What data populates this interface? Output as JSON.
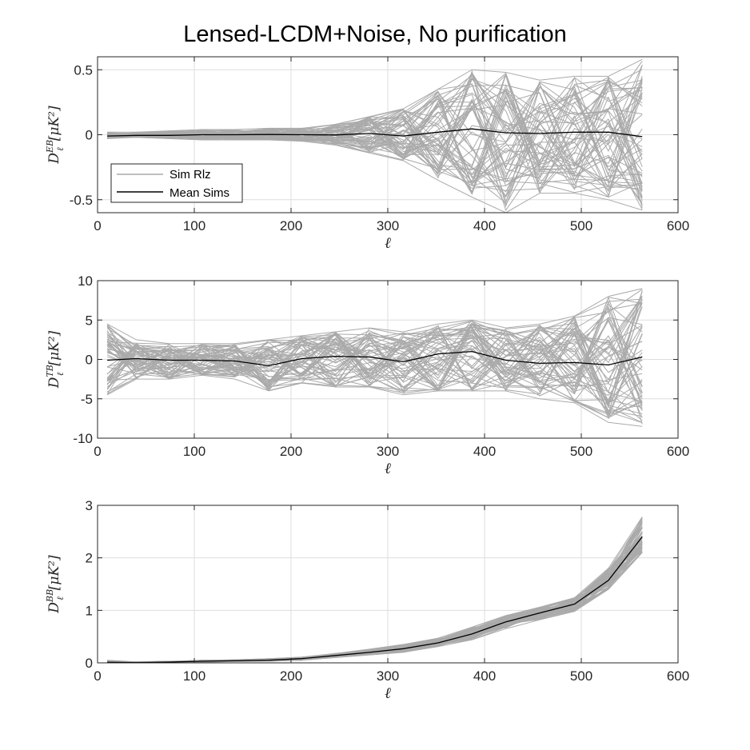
{
  "figure": {
    "title": "Lensed-LCDM+Noise, No purification",
    "legend": {
      "items": [
        {
          "label": "Sim Rlz",
          "color": "#aaaaaa"
        },
        {
          "label": "Mean Sims",
          "color": "#000000"
        }
      ],
      "placement": "bottom-left of first panel"
    },
    "colors": {
      "sims": "#aaaaaa",
      "mean": "#000000",
      "grid": "#dedede",
      "axis": "#262626"
    }
  },
  "chart_data": [
    {
      "type": "line",
      "title": "Lensed-LCDM+Noise, No purification",
      "xlabel": "ℓ",
      "ylabel_main": "D",
      "ylabel_sub": "ℓ",
      "ylabel_sup": "EB",
      "ylabel_unit": "[μK²]",
      "xlim": [
        0,
        600
      ],
      "ylim": [
        -0.6,
        0.6
      ],
      "xticks": [
        0,
        100,
        200,
        300,
        400,
        500,
        600
      ],
      "yticks": [
        -0.5,
        0,
        0.5
      ],
      "ytick_labels": [
        "-0.5",
        "0",
        "0.5"
      ],
      "grid": true,
      "x": [
        10,
        40,
        74,
        108,
        142,
        177,
        211,
        246,
        281,
        316,
        352,
        387,
        422,
        457,
        493,
        528,
        563
      ],
      "series": [
        {
          "name": "Mean Sims",
          "values": [
            -0.01,
            -0.005,
            -0.005,
            0,
            0,
            0.002,
            0,
            -0.002,
            0.01,
            -0.01,
            0.02,
            0.045,
            0.015,
            0.01,
            0.02,
            0.02,
            -0.015
          ]
        }
      ],
      "sim_envelope": {
        "name": "Sim Rlz",
        "upper": [
          0.02,
          0.02,
          0.03,
          0.04,
          0.04,
          0.05,
          0.05,
          0.08,
          0.14,
          0.2,
          0.35,
          0.5,
          0.48,
          0.42,
          0.45,
          0.45,
          0.58
        ],
        "lower": [
          -0.03,
          -0.02,
          -0.03,
          -0.04,
          -0.04,
          -0.04,
          -0.05,
          -0.08,
          -0.14,
          -0.2,
          -0.35,
          -0.48,
          -0.6,
          -0.45,
          -0.45,
          -0.5,
          -0.58
        ]
      }
    },
    {
      "type": "line",
      "xlabel": "ℓ",
      "ylabel_main": "D",
      "ylabel_sub": "ℓ",
      "ylabel_sup": "TB",
      "ylabel_unit": "[μK²]",
      "xlim": [
        0,
        600
      ],
      "ylim": [
        -10,
        10
      ],
      "xticks": [
        0,
        100,
        200,
        300,
        400,
        500,
        600
      ],
      "yticks": [
        -10,
        -5,
        0,
        5,
        10
      ],
      "ytick_labels": [
        "-10",
        "-5",
        "0",
        "5",
        "10"
      ],
      "grid": true,
      "x": [
        10,
        40,
        74,
        108,
        142,
        177,
        211,
        246,
        281,
        316,
        352,
        387,
        422,
        457,
        493,
        528,
        563
      ],
      "series": [
        {
          "name": "Mean Sims",
          "values": [
            -0.1,
            0.1,
            -0.1,
            -0.1,
            -0.2,
            -0.8,
            0.1,
            0.4,
            0.3,
            -0.3,
            0.7,
            1.0,
            -0.1,
            -0.5,
            -0.4,
            -0.7,
            0.3
          ]
        }
      ],
      "sim_envelope": {
        "name": "Sim Rlz",
        "upper": [
          4.5,
          2.5,
          2.0,
          2.0,
          2.0,
          2.5,
          3.0,
          3.5,
          4.0,
          3.5,
          4.5,
          5.0,
          4.0,
          4.5,
          5.5,
          8.0,
          9.0
        ],
        "lower": [
          -4.5,
          -2.5,
          -2.5,
          -2.0,
          -2.5,
          -4.0,
          -3.0,
          -3.5,
          -3.5,
          -4.5,
          -4.0,
          -4.0,
          -4.0,
          -5.0,
          -5.5,
          -8.0,
          -8.5
        ]
      }
    },
    {
      "type": "line",
      "xlabel": "ℓ",
      "ylabel_main": "D",
      "ylabel_sub": "ℓ",
      "ylabel_sup": "BB",
      "ylabel_unit": "[μK²]",
      "xlim": [
        0,
        600
      ],
      "ylim": [
        0,
        3
      ],
      "xticks": [
        0,
        100,
        200,
        300,
        400,
        500,
        600
      ],
      "yticks": [
        0,
        1,
        2,
        3
      ],
      "ytick_labels": [
        "0",
        "1",
        "2",
        "3"
      ],
      "grid": true,
      "x": [
        10,
        40,
        74,
        108,
        142,
        177,
        211,
        246,
        281,
        316,
        352,
        387,
        422,
        457,
        493,
        528,
        563
      ],
      "series": [
        {
          "name": "Mean Sims",
          "values": [
            0.01,
            0.005,
            0.015,
            0.03,
            0.04,
            0.05,
            0.08,
            0.14,
            0.2,
            0.27,
            0.38,
            0.55,
            0.78,
            0.95,
            1.12,
            1.57,
            2.4
          ]
        }
      ],
      "sim_envelope": {
        "name": "Sim Rlz",
        "upper": [
          0.05,
          0.02,
          0.03,
          0.05,
          0.06,
          0.08,
          0.11,
          0.18,
          0.26,
          0.35,
          0.47,
          0.68,
          0.9,
          1.06,
          1.24,
          1.8,
          2.78
        ],
        "lower": [
          0.0,
          0.0,
          0.005,
          0.015,
          0.025,
          0.03,
          0.05,
          0.1,
          0.15,
          0.2,
          0.31,
          0.44,
          0.65,
          0.82,
          0.98,
          1.4,
          2.1
        ]
      }
    }
  ]
}
